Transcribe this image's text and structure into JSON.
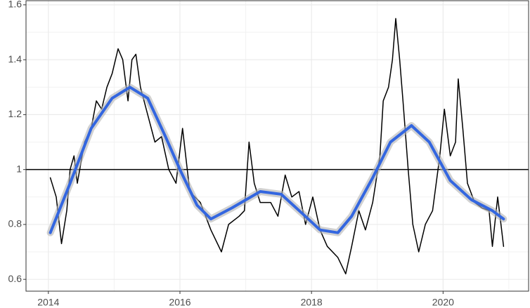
{
  "chart_data": {
    "type": "line",
    "xlim": [
      2013.66,
      2021.3
    ],
    "ylim": [
      0.557,
      1.615
    ],
    "xticks": [
      2014,
      2016,
      2018,
      2020
    ],
    "yticks": [
      0.6,
      0.8,
      1.0,
      1.2,
      1.4,
      1.6
    ],
    "grid": true,
    "hline": 1.0,
    "series": [
      {
        "color": "#000000",
        "x": [
          2014.03,
          2014.12,
          2014.2,
          2014.28,
          2014.33,
          2014.39,
          2014.44,
          2014.55,
          2014.65,
          2014.73,
          2014.81,
          2014.89,
          2014.97,
          2015.06,
          2015.13,
          2015.21,
          2015.27,
          2015.33,
          2015.4,
          2015.51,
          2015.62,
          2015.72,
          2015.83,
          2015.94,
          2016.04,
          2016.15,
          2016.31,
          2016.47,
          2016.63,
          2016.74,
          2016.9,
          2016.98,
          2017.05,
          2017.13,
          2017.22,
          2017.38,
          2017.49,
          2017.6,
          2017.7,
          2017.81,
          2017.91,
          2018.02,
          2018.13,
          2018.24,
          2018.4,
          2018.52,
          2018.61,
          2018.72,
          2018.82,
          2018.93,
          2019.04,
          2019.09,
          2019.17,
          2019.23,
          2019.28,
          2019.34,
          2019.39,
          2019.47,
          2019.54,
          2019.63,
          2019.73,
          2019.84,
          2019.95,
          2020.02,
          2020.11,
          2020.19,
          2020.23,
          2020.3,
          2020.37,
          2020.48,
          2020.59,
          2020.7,
          2020.75,
          2020.83,
          2020.88,
          2020.92
        ],
        "values": [
          0.97,
          0.9,
          0.73,
          0.85,
          1.0,
          1.05,
          0.95,
          1.1,
          1.15,
          1.25,
          1.22,
          1.3,
          1.35,
          1.44,
          1.4,
          1.25,
          1.4,
          1.42,
          1.3,
          1.2,
          1.1,
          1.12,
          1.0,
          0.95,
          1.15,
          0.92,
          0.88,
          0.78,
          0.7,
          0.8,
          0.83,
          0.85,
          1.1,
          0.95,
          0.88,
          0.88,
          0.83,
          0.98,
          0.9,
          0.92,
          0.8,
          0.9,
          0.78,
          0.72,
          0.68,
          0.62,
          0.72,
          0.85,
          0.78,
          0.88,
          1.05,
          1.25,
          1.3,
          1.4,
          1.55,
          1.4,
          1.25,
          1.0,
          0.8,
          0.7,
          0.8,
          0.85,
          1.05,
          1.22,
          1.05,
          1.1,
          1.33,
          1.15,
          0.95,
          0.88,
          0.86,
          0.85,
          0.72,
          0.9,
          0.8,
          0.72
        ]
      },
      {
        "color": "#3366e0",
        "x": [
          2014.03,
          2014.33,
          2014.65,
          2014.97,
          2015.24,
          2015.51,
          2015.78,
          2016.0,
          2016.26,
          2016.47,
          2016.79,
          2017.22,
          2017.54,
          2017.86,
          2018.13,
          2018.4,
          2018.61,
          2018.93,
          2019.2,
          2019.52,
          2019.79,
          2020.11,
          2020.43,
          2020.75,
          2020.92
        ],
        "values": [
          0.77,
          0.95,
          1.15,
          1.26,
          1.3,
          1.26,
          1.12,
          1.0,
          0.87,
          0.82,
          0.86,
          0.92,
          0.91,
          0.84,
          0.78,
          0.77,
          0.83,
          0.97,
          1.1,
          1.16,
          1.1,
          0.96,
          0.89,
          0.85,
          0.82
        ]
      }
    ]
  }
}
